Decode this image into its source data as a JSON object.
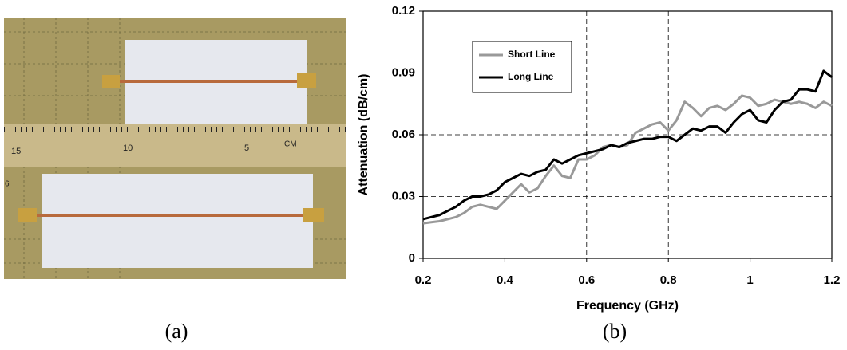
{
  "chart_data": {
    "type": "line",
    "x_label": "Frequency (GHz)",
    "y_label": "Attenuation (dB/cm)",
    "x": [
      0.2,
      0.22,
      0.24,
      0.26,
      0.28,
      0.3,
      0.32,
      0.34,
      0.36,
      0.38,
      0.4,
      0.42,
      0.44,
      0.46,
      0.48,
      0.5,
      0.52,
      0.54,
      0.56,
      0.58,
      0.6,
      0.62,
      0.64,
      0.66,
      0.68,
      0.7,
      0.72,
      0.74,
      0.76,
      0.78,
      0.8,
      0.82,
      0.84,
      0.86,
      0.88,
      0.9,
      0.92,
      0.94,
      0.96,
      0.98,
      1.0,
      1.02,
      1.04,
      1.06,
      1.08,
      1.1,
      1.12,
      1.14,
      1.16,
      1.18,
      1.2
    ],
    "series": [
      {
        "name": "Short Line",
        "color": "#999999",
        "values": [
          0.017,
          0.0175,
          0.018,
          0.019,
          0.02,
          0.022,
          0.025,
          0.026,
          0.025,
          0.024,
          0.028,
          0.032,
          0.036,
          0.032,
          0.034,
          0.04,
          0.045,
          0.04,
          0.039,
          0.048,
          0.048,
          0.05,
          0.054,
          0.055,
          0.054,
          0.055,
          0.061,
          0.063,
          0.065,
          0.066,
          0.062,
          0.067,
          0.076,
          0.073,
          0.069,
          0.073,
          0.074,
          0.072,
          0.075,
          0.079,
          0.078,
          0.074,
          0.075,
          0.077,
          0.076,
          0.075,
          0.076,
          0.075,
          0.073,
          0.076,
          0.074
        ]
      },
      {
        "name": "Long Line",
        "color": "#000000",
        "values": [
          0.019,
          0.02,
          0.021,
          0.023,
          0.025,
          0.028,
          0.03,
          0.03,
          0.031,
          0.033,
          0.037,
          0.039,
          0.041,
          0.04,
          0.042,
          0.043,
          0.048,
          0.046,
          0.048,
          0.05,
          0.051,
          0.052,
          0.053,
          0.055,
          0.054,
          0.056,
          0.057,
          0.058,
          0.058,
          0.059,
          0.059,
          0.057,
          0.06,
          0.063,
          0.062,
          0.064,
          0.064,
          0.061,
          0.066,
          0.07,
          0.072,
          0.067,
          0.066,
          0.072,
          0.076,
          0.077,
          0.082,
          0.082,
          0.081,
          0.091,
          0.088
        ]
      }
    ],
    "xlim": [
      0.2,
      1.2
    ],
    "xticks": [
      0.2,
      0.4,
      0.6,
      0.8,
      1,
      1.2
    ],
    "ylim": [
      0,
      0.12
    ],
    "yticks": [
      0,
      0.03,
      0.06,
      0.09,
      0.12
    ],
    "grid": true,
    "legend": "upper left"
  },
  "photo": {
    "ruler_labels": [
      "15",
      "10",
      "5",
      "CM",
      "6"
    ]
  },
  "captions": [
    "(a)",
    "(b)"
  ]
}
